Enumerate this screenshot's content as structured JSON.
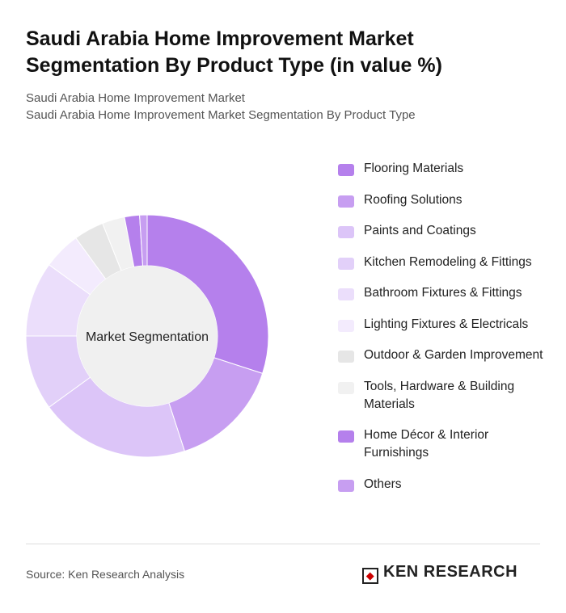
{
  "header": {
    "title": "Saudi Arabia Home Improvement Market Segmentation By Product Type (in value %)",
    "subtitle_1": "Saudi Arabia Home Improvement Market",
    "subtitle_2": "Saudi Arabia Home Improvement Market Segmentation By Product Type"
  },
  "chart_data": {
    "type": "donut",
    "center_label": "Market Segmentation",
    "categories": [
      "Flooring Materials",
      "Roofing Solutions",
      "Paints and Coatings",
      "Kitchen Remodeling & Fittings",
      "Bathroom Fixtures & Fittings",
      "Lighting Fixtures & Electricals",
      "Outdoor & Garden Improvement",
      "Tools, Hardware & Building Materials",
      "Home Décor & Interior Furnishings",
      "Others"
    ],
    "values": [
      30,
      15,
      20,
      10,
      10,
      5,
      4,
      3,
      2,
      1
    ],
    "colors": [
      "#b580ec",
      "#c79ef1",
      "#dcc5f8",
      "#e2d0f9",
      "#ebdefb",
      "#f3ebfd",
      "#e6e6e6",
      "#f1f1f1",
      "#b580ec",
      "#c79ef1"
    ]
  },
  "footer": {
    "source": "Source: Ken Research Analysis",
    "logo": "KEN RESEARCH"
  }
}
